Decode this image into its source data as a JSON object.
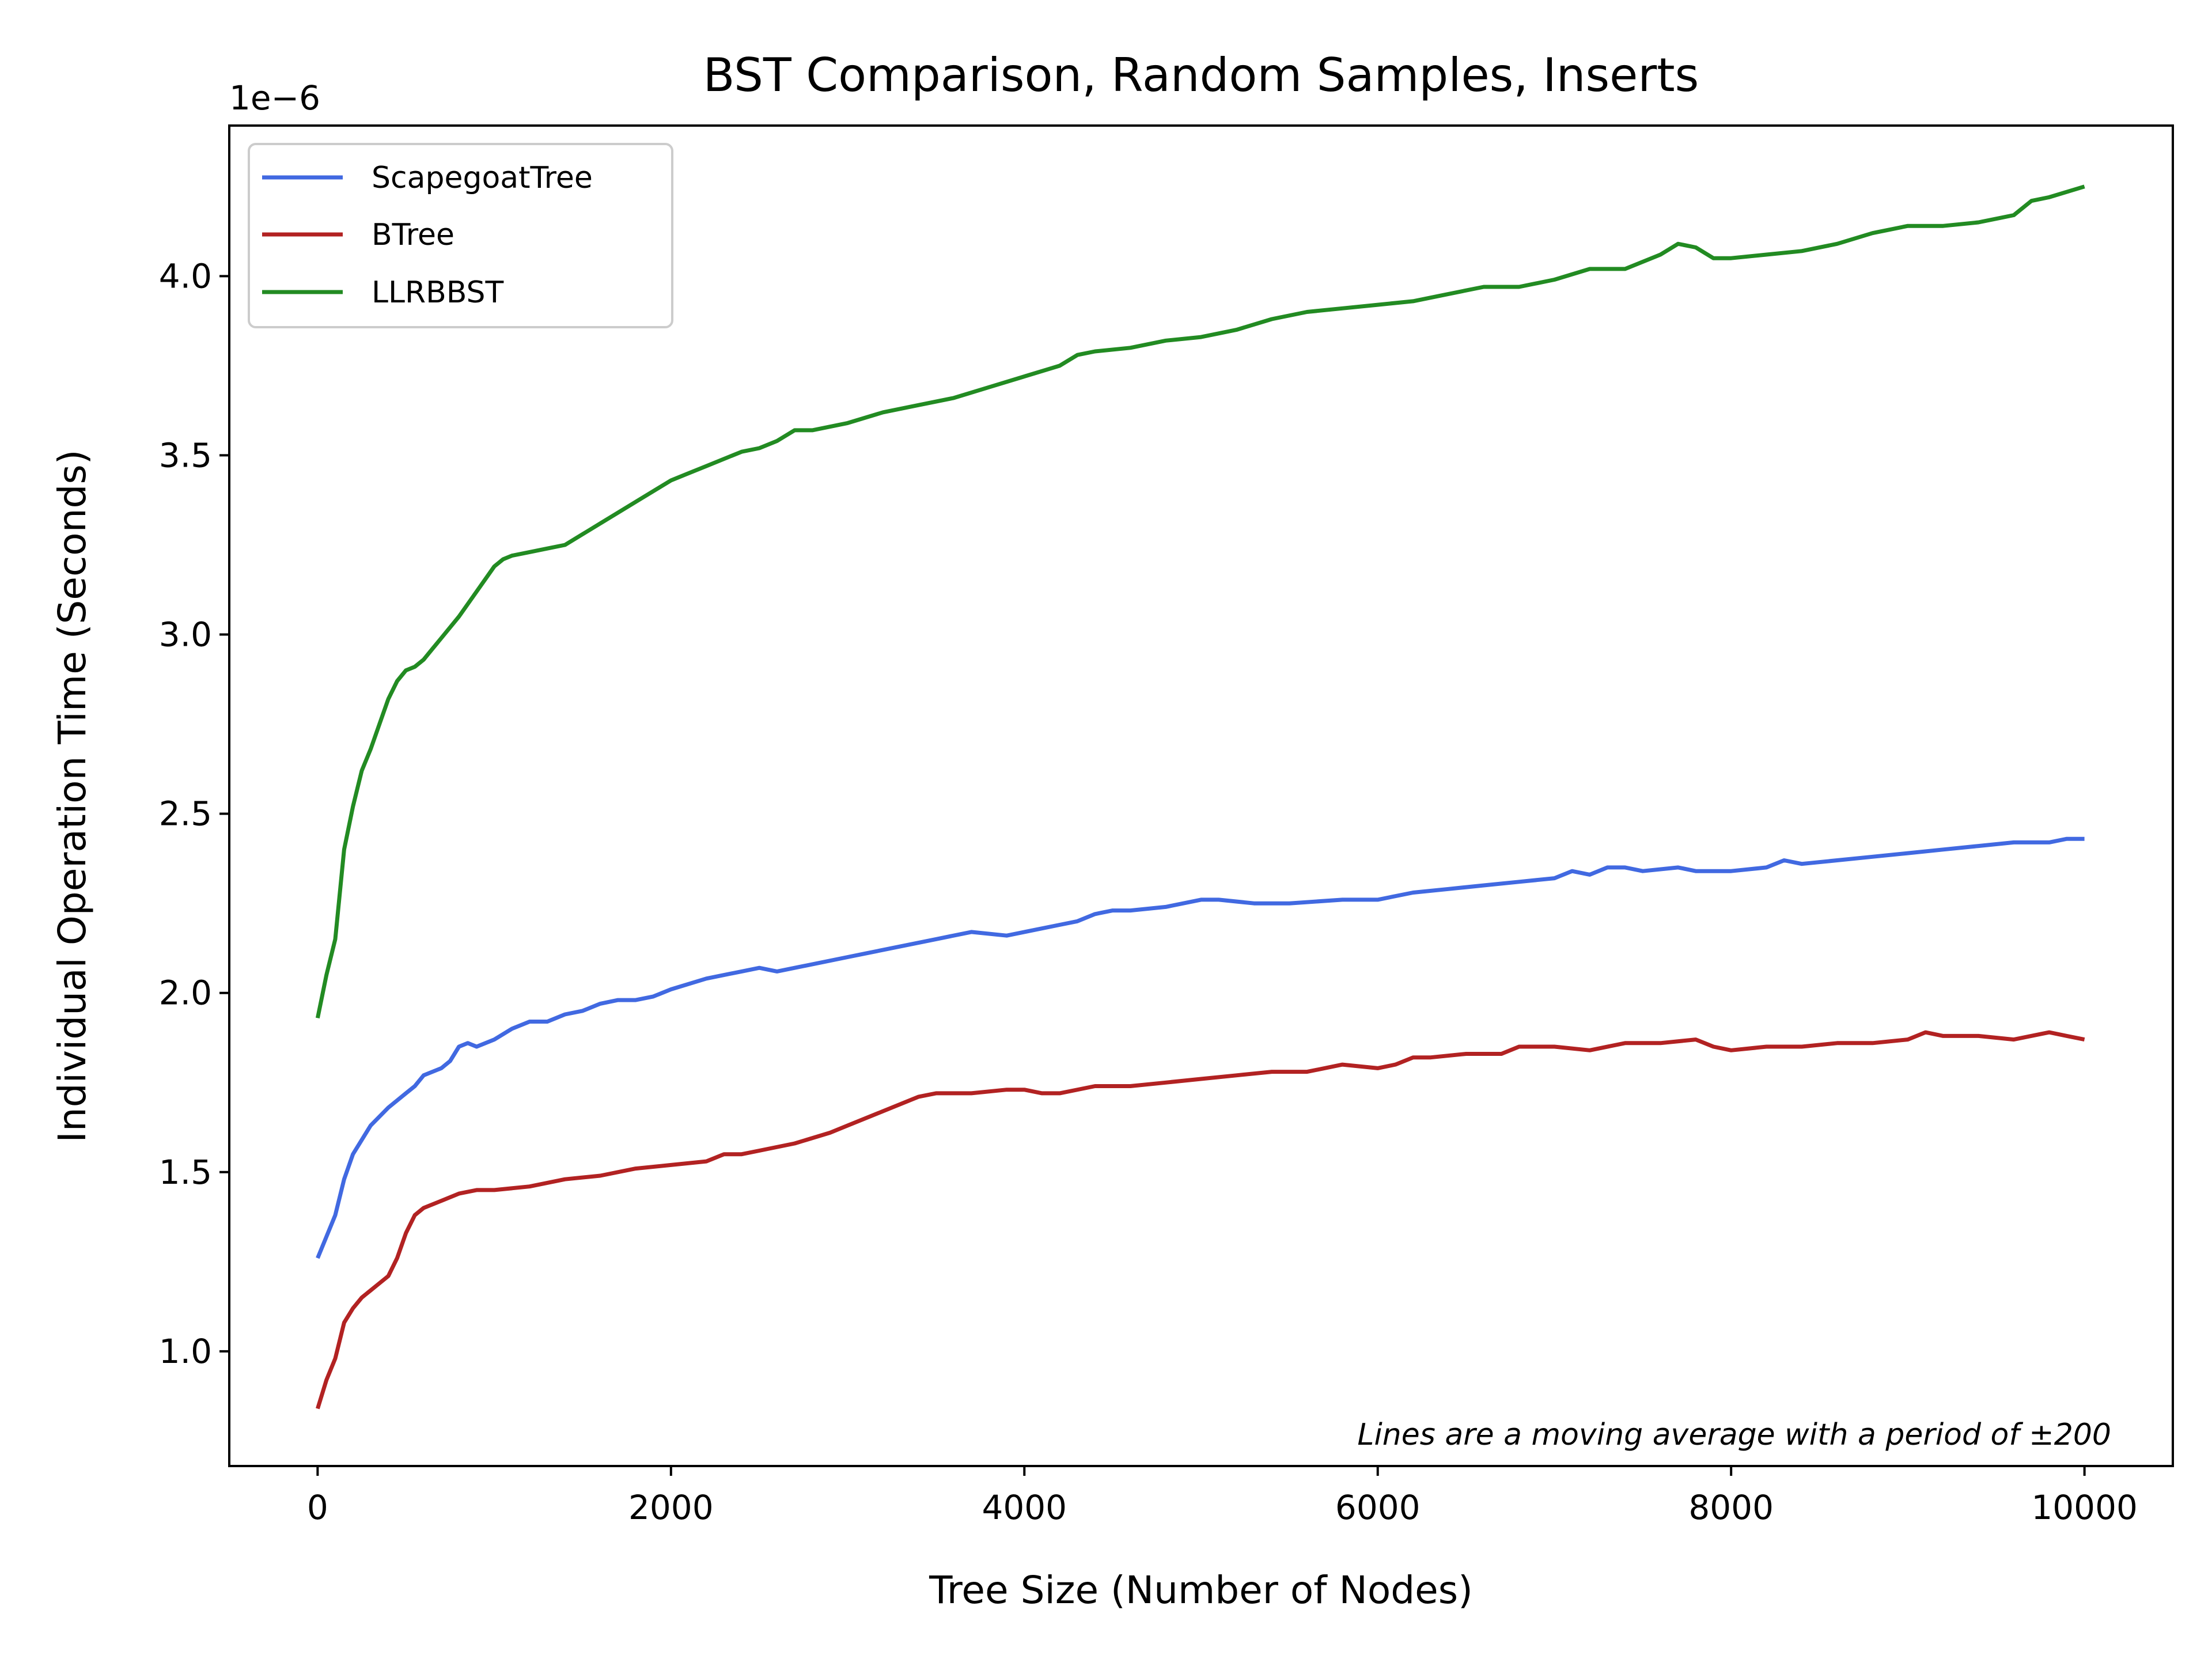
{
  "chart_data": {
    "type": "line",
    "title": "BST Comparison, Random Samples, Inserts",
    "xlabel": "Tree Size (Number of Nodes)",
    "ylabel": "Individual Operation Time (Seconds)",
    "y_offset_label": "1e−6",
    "annotation": "Lines are a moving average with a period of ±200",
    "xlim": [
      -500,
      10500
    ],
    "ylim": [
      0.68,
      4.42
    ],
    "x_ticks": [
      0,
      2000,
      4000,
      6000,
      8000,
      10000
    ],
    "x_tick_labels": [
      "0",
      "2000",
      "4000",
      "6000",
      "8000",
      "10000"
    ],
    "y_ticks": [
      1.0,
      1.5,
      2.0,
      2.5,
      3.0,
      3.5,
      4.0
    ],
    "y_tick_labels": [
      "1.0",
      "1.5",
      "2.0",
      "2.5",
      "3.0",
      "3.5",
      "4.0"
    ],
    "grid": false,
    "legend_position": "top-left",
    "series": [
      {
        "name": "ScapegoatTree",
        "color": "#4169e1",
        "x": [
          0,
          50,
          100,
          150,
          200,
          300,
          400,
          500,
          550,
          600,
          700,
          750,
          800,
          850,
          900,
          1000,
          1100,
          1200,
          1300,
          1400,
          1500,
          1600,
          1700,
          1800,
          1900,
          2000,
          2200,
          2400,
          2500,
          2600,
          2700,
          3000,
          3300,
          3500,
          3700,
          3900,
          4000,
          4200,
          4300,
          4400,
          4500,
          4600,
          4800,
          5000,
          5100,
          5300,
          5500,
          5800,
          6000,
          6200,
          6400,
          6600,
          6800,
          7000,
          7100,
          7200,
          7300,
          7400,
          7500,
          7700,
          7800,
          7900,
          8000,
          8200,
          8300,
          8400,
          8600,
          8800,
          9000,
          9200,
          9400,
          9600,
          9800,
          9900,
          10000
        ],
        "values": [
          1.26,
          1.32,
          1.38,
          1.48,
          1.55,
          1.63,
          1.68,
          1.72,
          1.74,
          1.77,
          1.79,
          1.81,
          1.85,
          1.86,
          1.85,
          1.87,
          1.9,
          1.92,
          1.92,
          1.94,
          1.95,
          1.97,
          1.98,
          1.98,
          1.99,
          2.01,
          2.04,
          2.06,
          2.07,
          2.06,
          2.07,
          2.1,
          2.13,
          2.15,
          2.17,
          2.16,
          2.17,
          2.19,
          2.2,
          2.22,
          2.23,
          2.23,
          2.24,
          2.26,
          2.26,
          2.25,
          2.25,
          2.26,
          2.26,
          2.28,
          2.29,
          2.3,
          2.31,
          2.32,
          2.34,
          2.33,
          2.35,
          2.35,
          2.34,
          2.35,
          2.34,
          2.34,
          2.34,
          2.35,
          2.37,
          2.36,
          2.37,
          2.38,
          2.39,
          2.4,
          2.41,
          2.42,
          2.42,
          2.43,
          2.43
        ]
      },
      {
        "name": "BTree",
        "color": "#b22222",
        "x": [
          0,
          50,
          100,
          150,
          200,
          250,
          300,
          350,
          400,
          450,
          500,
          550,
          600,
          700,
          800,
          900,
          1000,
          1200,
          1400,
          1600,
          1800,
          2000,
          2200,
          2300,
          2400,
          2500,
          2700,
          2900,
          3000,
          3200,
          3400,
          3500,
          3700,
          3900,
          4000,
          4100,
          4200,
          4400,
          4600,
          4800,
          5000,
          5200,
          5400,
          5600,
          5800,
          6000,
          6100,
          6200,
          6300,
          6500,
          6700,
          6800,
          7000,
          7200,
          7400,
          7600,
          7800,
          7900,
          8000,
          8200,
          8400,
          8600,
          8800,
          9000,
          9100,
          9200,
          9400,
          9600,
          9800,
          9900,
          10000
        ],
        "values": [
          0.84,
          0.92,
          0.98,
          1.08,
          1.12,
          1.15,
          1.17,
          1.19,
          1.21,
          1.26,
          1.33,
          1.38,
          1.4,
          1.42,
          1.44,
          1.45,
          1.45,
          1.46,
          1.48,
          1.49,
          1.51,
          1.52,
          1.53,
          1.55,
          1.55,
          1.56,
          1.58,
          1.61,
          1.63,
          1.67,
          1.71,
          1.72,
          1.72,
          1.73,
          1.73,
          1.72,
          1.72,
          1.74,
          1.74,
          1.75,
          1.76,
          1.77,
          1.78,
          1.78,
          1.8,
          1.79,
          1.8,
          1.82,
          1.82,
          1.83,
          1.83,
          1.85,
          1.85,
          1.84,
          1.86,
          1.86,
          1.87,
          1.85,
          1.84,
          1.85,
          1.85,
          1.86,
          1.86,
          1.87,
          1.89,
          1.88,
          1.88,
          1.87,
          1.89,
          1.88,
          1.87
        ]
      },
      {
        "name": "LLRBBST",
        "color": "#228b22",
        "x": [
          0,
          50,
          100,
          150,
          200,
          250,
          300,
          350,
          400,
          450,
          500,
          550,
          600,
          650,
          700,
          800,
          900,
          1000,
          1050,
          1100,
          1200,
          1300,
          1400,
          1500,
          1600,
          1800,
          2000,
          2100,
          2200,
          2400,
          2500,
          2600,
          2700,
          2800,
          3000,
          3200,
          3400,
          3600,
          3800,
          4000,
          4200,
          4300,
          4400,
          4600,
          4800,
          5000,
          5200,
          5400,
          5600,
          5800,
          6000,
          6200,
          6400,
          6600,
          6800,
          7000,
          7200,
          7400,
          7600,
          7700,
          7800,
          7900,
          8000,
          8200,
          8400,
          8600,
          8800,
          9000,
          9200,
          9400,
          9600,
          9700,
          9800,
          10000
        ],
        "values": [
          1.93,
          2.05,
          2.15,
          2.4,
          2.52,
          2.62,
          2.68,
          2.75,
          2.82,
          2.87,
          2.9,
          2.91,
          2.93,
          2.96,
          2.99,
          3.05,
          3.12,
          3.19,
          3.21,
          3.22,
          3.23,
          3.24,
          3.25,
          3.28,
          3.31,
          3.37,
          3.43,
          3.45,
          3.47,
          3.51,
          3.52,
          3.54,
          3.57,
          3.57,
          3.59,
          3.62,
          3.64,
          3.66,
          3.69,
          3.72,
          3.75,
          3.78,
          3.79,
          3.8,
          3.82,
          3.83,
          3.85,
          3.88,
          3.9,
          3.91,
          3.92,
          3.93,
          3.95,
          3.97,
          3.97,
          3.99,
          4.02,
          4.02,
          4.06,
          4.09,
          4.08,
          4.05,
          4.05,
          4.06,
          4.07,
          4.09,
          4.12,
          4.14,
          4.14,
          4.15,
          4.17,
          4.21,
          4.22,
          4.25
        ]
      }
    ]
  }
}
